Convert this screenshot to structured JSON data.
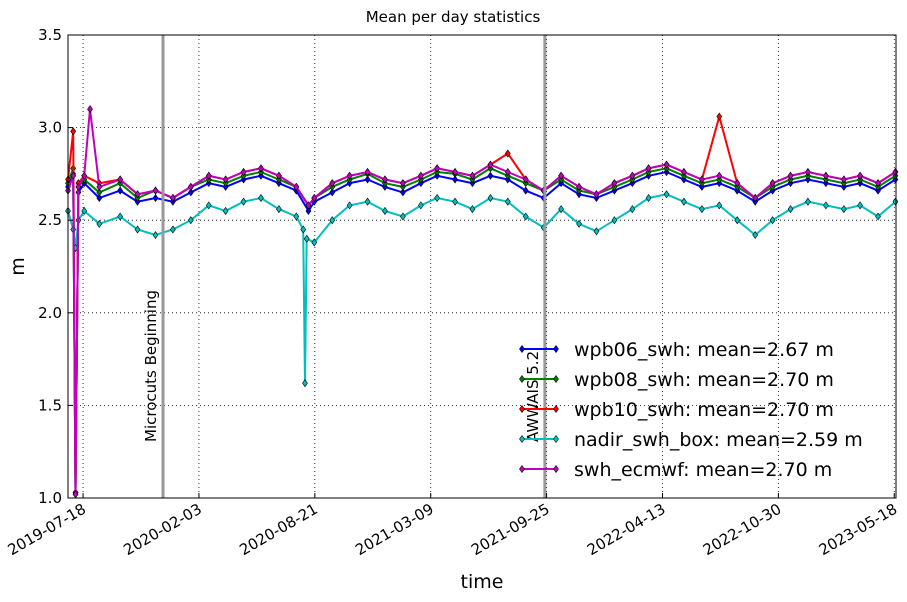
{
  "chart_data": {
    "type": "line",
    "title": "Mean per day statistics",
    "xlabel": "time",
    "ylabel": "m",
    "ylim": [
      1.0,
      3.5
    ],
    "xlim": [
      "2019-06-22",
      "2023-05-21"
    ],
    "yticks": [
      "1.0",
      "1.5",
      "2.0",
      "2.5",
      "3.0",
      "3.5"
    ],
    "xticks": [
      {
        "date": "2019-07-18",
        "label": "2019-07-18"
      },
      {
        "date": "2020-02-03",
        "label": "2020-02-03"
      },
      {
        "date": "2020-08-21",
        "label": "2020-08-21"
      },
      {
        "date": "2021-03-09",
        "label": "2021-03-09"
      },
      {
        "date": "2021-09-25",
        "label": "2021-09-25"
      },
      {
        "date": "2022-04-13",
        "label": "2022-04-13"
      },
      {
        "date": "2022-10-30",
        "label": "2022-10-30"
      },
      {
        "date": "2023-05-18",
        "label": "2023-05-18"
      }
    ],
    "grid": true,
    "legend_position": "lower-right",
    "annotations": [
      {
        "date": "2019-12-03",
        "label": "Microcuts Beginning"
      },
      {
        "date": "2021-09-22",
        "label": "AWWAIS 5.2"
      }
    ],
    "series": [
      {
        "name": "wpb06_swh: mean=2.67 m",
        "color": "#0000ff",
        "points": [
          [
            "2019-06-22",
            2.68
          ],
          [
            "2019-07-01",
            2.75
          ],
          [
            "2019-07-05",
            1.02
          ],
          [
            "2019-07-10",
            2.65
          ],
          [
            "2019-07-20",
            2.7
          ],
          [
            "2019-08-15",
            2.62
          ],
          [
            "2019-09-20",
            2.66
          ],
          [
            "2019-10-20",
            2.6
          ],
          [
            "2019-11-20",
            2.62
          ],
          [
            "2019-12-20",
            2.6
          ],
          [
            "2020-01-20",
            2.65
          ],
          [
            "2020-02-20",
            2.7
          ],
          [
            "2020-03-20",
            2.68
          ],
          [
            "2020-04-20",
            2.72
          ],
          [
            "2020-05-20",
            2.74
          ],
          [
            "2020-06-20",
            2.7
          ],
          [
            "2020-07-20",
            2.66
          ],
          [
            "2020-08-10",
            2.55
          ],
          [
            "2020-08-20",
            2.6
          ],
          [
            "2020-09-20",
            2.65
          ],
          [
            "2020-10-20",
            2.7
          ],
          [
            "2020-11-20",
            2.72
          ],
          [
            "2020-12-20",
            2.68
          ],
          [
            "2021-01-20",
            2.65
          ],
          [
            "2021-02-20",
            2.7
          ],
          [
            "2021-03-20",
            2.74
          ],
          [
            "2021-04-20",
            2.72
          ],
          [
            "2021-05-20",
            2.7
          ],
          [
            "2021-06-20",
            2.74
          ],
          [
            "2021-07-20",
            2.72
          ],
          [
            "2021-08-20",
            2.66
          ],
          [
            "2021-09-20",
            2.62
          ],
          [
            "2021-10-20",
            2.7
          ],
          [
            "2021-11-20",
            2.64
          ],
          [
            "2021-12-20",
            2.62
          ],
          [
            "2022-01-20",
            2.66
          ],
          [
            "2022-02-20",
            2.7
          ],
          [
            "2022-03-20",
            2.74
          ],
          [
            "2022-04-20",
            2.76
          ],
          [
            "2022-05-20",
            2.72
          ],
          [
            "2022-06-20",
            2.68
          ],
          [
            "2022-07-20",
            2.7
          ],
          [
            "2022-08-20",
            2.66
          ],
          [
            "2022-09-20",
            2.6
          ],
          [
            "2022-10-20",
            2.66
          ],
          [
            "2022-11-20",
            2.7
          ],
          [
            "2022-12-20",
            2.72
          ],
          [
            "2023-01-20",
            2.7
          ],
          [
            "2023-02-20",
            2.68
          ],
          [
            "2023-03-20",
            2.7
          ],
          [
            "2023-04-20",
            2.66
          ],
          [
            "2023-05-20",
            2.72
          ]
        ]
      },
      {
        "name": "wpb08_swh: mean=2.70 m",
        "color": "#008000",
        "points": [
          [
            "2019-06-22",
            2.7
          ],
          [
            "2019-07-01",
            2.78
          ],
          [
            "2019-07-05",
            1.03
          ],
          [
            "2019-07-10",
            2.68
          ],
          [
            "2019-07-20",
            2.72
          ],
          [
            "2019-08-15",
            2.65
          ],
          [
            "2019-09-20",
            2.7
          ],
          [
            "2019-10-20",
            2.62
          ],
          [
            "2019-11-20",
            2.66
          ],
          [
            "2019-12-20",
            2.62
          ],
          [
            "2020-01-20",
            2.68
          ],
          [
            "2020-02-20",
            2.72
          ],
          [
            "2020-03-20",
            2.7
          ],
          [
            "2020-04-20",
            2.74
          ],
          [
            "2020-05-20",
            2.76
          ],
          [
            "2020-06-20",
            2.72
          ],
          [
            "2020-07-20",
            2.68
          ],
          [
            "2020-08-10",
            2.58
          ],
          [
            "2020-08-20",
            2.62
          ],
          [
            "2020-09-20",
            2.68
          ],
          [
            "2020-10-20",
            2.72
          ],
          [
            "2020-11-20",
            2.75
          ],
          [
            "2020-12-20",
            2.7
          ],
          [
            "2021-01-20",
            2.68
          ],
          [
            "2021-02-20",
            2.72
          ],
          [
            "2021-03-20",
            2.76
          ],
          [
            "2021-04-20",
            2.75
          ],
          [
            "2021-05-20",
            2.72
          ],
          [
            "2021-06-20",
            2.78
          ],
          [
            "2021-07-20",
            2.74
          ],
          [
            "2021-08-20",
            2.7
          ],
          [
            "2021-09-20",
            2.66
          ],
          [
            "2021-10-20",
            2.72
          ],
          [
            "2021-11-20",
            2.66
          ],
          [
            "2021-12-20",
            2.64
          ],
          [
            "2022-01-20",
            2.68
          ],
          [
            "2022-02-20",
            2.72
          ],
          [
            "2022-03-20",
            2.76
          ],
          [
            "2022-04-20",
            2.78
          ],
          [
            "2022-05-20",
            2.74
          ],
          [
            "2022-06-20",
            2.7
          ],
          [
            "2022-07-20",
            2.72
          ],
          [
            "2022-08-20",
            2.68
          ],
          [
            "2022-09-20",
            2.62
          ],
          [
            "2022-10-20",
            2.68
          ],
          [
            "2022-11-20",
            2.72
          ],
          [
            "2022-12-20",
            2.74
          ],
          [
            "2023-01-20",
            2.72
          ],
          [
            "2023-02-20",
            2.7
          ],
          [
            "2023-03-20",
            2.72
          ],
          [
            "2023-04-20",
            2.68
          ],
          [
            "2023-05-20",
            2.74
          ]
        ]
      },
      {
        "name": "wpb10_swh: mean=2.70 m",
        "color": "#ff0000",
        "points": [
          [
            "2019-06-22",
            2.72
          ],
          [
            "2019-07-01",
            2.98
          ],
          [
            "2019-07-05",
            1.03
          ],
          [
            "2019-07-10",
            2.7
          ],
          [
            "2019-07-20",
            2.74
          ],
          [
            "2019-08-15",
            2.7
          ],
          [
            "2019-09-20",
            2.72
          ],
          [
            "2019-10-20",
            2.64
          ],
          [
            "2019-11-20",
            2.66
          ],
          [
            "2019-12-20",
            2.62
          ],
          [
            "2020-01-20",
            2.68
          ],
          [
            "2020-02-20",
            2.74
          ],
          [
            "2020-03-20",
            2.72
          ],
          [
            "2020-04-20",
            2.76
          ],
          [
            "2020-05-20",
            2.78
          ],
          [
            "2020-06-20",
            2.74
          ],
          [
            "2020-07-20",
            2.68
          ],
          [
            "2020-08-10",
            2.58
          ],
          [
            "2020-08-20",
            2.62
          ],
          [
            "2020-09-20",
            2.7
          ],
          [
            "2020-10-20",
            2.74
          ],
          [
            "2020-11-20",
            2.76
          ],
          [
            "2020-12-20",
            2.72
          ],
          [
            "2021-01-20",
            2.7
          ],
          [
            "2021-02-20",
            2.74
          ],
          [
            "2021-03-20",
            2.78
          ],
          [
            "2021-04-20",
            2.76
          ],
          [
            "2021-05-20",
            2.74
          ],
          [
            "2021-06-20",
            2.8
          ],
          [
            "2021-07-20",
            2.86
          ],
          [
            "2021-08-20",
            2.72
          ],
          [
            "2021-09-20",
            2.66
          ],
          [
            "2021-10-20",
            2.74
          ],
          [
            "2021-11-20",
            2.68
          ],
          [
            "2021-12-20",
            2.64
          ],
          [
            "2022-01-20",
            2.7
          ],
          [
            "2022-02-20",
            2.74
          ],
          [
            "2022-03-20",
            2.78
          ],
          [
            "2022-04-20",
            2.8
          ],
          [
            "2022-05-20",
            2.76
          ],
          [
            "2022-06-20",
            2.72
          ],
          [
            "2022-07-20",
            3.06
          ],
          [
            "2022-08-20",
            2.7
          ],
          [
            "2022-09-20",
            2.62
          ],
          [
            "2022-10-20",
            2.7
          ],
          [
            "2022-11-20",
            2.74
          ],
          [
            "2022-12-20",
            2.76
          ],
          [
            "2023-01-20",
            2.74
          ],
          [
            "2023-02-20",
            2.72
          ],
          [
            "2023-03-20",
            2.74
          ],
          [
            "2023-04-20",
            2.7
          ],
          [
            "2023-05-20",
            2.76
          ]
        ]
      },
      {
        "name": "nadir_swh_box: mean=2.59 m",
        "color": "#00bfbf",
        "points": [
          [
            "2019-06-22",
            2.55
          ],
          [
            "2019-07-01",
            2.45
          ],
          [
            "2019-07-05",
            2.35
          ],
          [
            "2019-07-10",
            2.5
          ],
          [
            "2019-07-20",
            2.55
          ],
          [
            "2019-08-15",
            2.48
          ],
          [
            "2019-09-20",
            2.52
          ],
          [
            "2019-10-20",
            2.45
          ],
          [
            "2019-11-20",
            2.42
          ],
          [
            "2019-12-20",
            2.45
          ],
          [
            "2020-01-20",
            2.5
          ],
          [
            "2020-02-20",
            2.58
          ],
          [
            "2020-03-20",
            2.55
          ],
          [
            "2020-04-20",
            2.6
          ],
          [
            "2020-05-20",
            2.62
          ],
          [
            "2020-06-20",
            2.56
          ],
          [
            "2020-07-20",
            2.52
          ],
          [
            "2020-08-01",
            2.45
          ],
          [
            "2020-08-04",
            1.62
          ],
          [
            "2020-08-07",
            2.4
          ],
          [
            "2020-08-20",
            2.38
          ],
          [
            "2020-09-20",
            2.5
          ],
          [
            "2020-10-20",
            2.58
          ],
          [
            "2020-11-20",
            2.6
          ],
          [
            "2020-12-20",
            2.55
          ],
          [
            "2021-01-20",
            2.52
          ],
          [
            "2021-02-20",
            2.58
          ],
          [
            "2021-03-20",
            2.62
          ],
          [
            "2021-04-20",
            2.6
          ],
          [
            "2021-05-20",
            2.56
          ],
          [
            "2021-06-20",
            2.62
          ],
          [
            "2021-07-20",
            2.6
          ],
          [
            "2021-08-20",
            2.52
          ],
          [
            "2021-09-20",
            2.46
          ],
          [
            "2021-10-20",
            2.56
          ],
          [
            "2021-11-20",
            2.48
          ],
          [
            "2021-12-20",
            2.44
          ],
          [
            "2022-01-20",
            2.5
          ],
          [
            "2022-02-20",
            2.56
          ],
          [
            "2022-03-20",
            2.62
          ],
          [
            "2022-04-20",
            2.64
          ],
          [
            "2022-05-20",
            2.6
          ],
          [
            "2022-06-20",
            2.56
          ],
          [
            "2022-07-20",
            2.58
          ],
          [
            "2022-08-20",
            2.5
          ],
          [
            "2022-09-20",
            2.42
          ],
          [
            "2022-10-20",
            2.5
          ],
          [
            "2022-11-20",
            2.56
          ],
          [
            "2022-12-20",
            2.6
          ],
          [
            "2023-01-20",
            2.58
          ],
          [
            "2023-02-20",
            2.56
          ],
          [
            "2023-03-20",
            2.58
          ],
          [
            "2023-04-20",
            2.52
          ],
          [
            "2023-05-20",
            2.6
          ]
        ]
      },
      {
        "name": "swh_ecmwf: mean=2.70 m",
        "color": "#bf00bf",
        "points": [
          [
            "2019-06-22",
            2.66
          ],
          [
            "2019-07-01",
            2.74
          ],
          [
            "2019-07-05",
            1.02
          ],
          [
            "2019-07-10",
            2.68
          ],
          [
            "2019-07-20",
            2.74
          ],
          [
            "2019-07-30",
            3.1
          ],
          [
            "2019-08-15",
            2.68
          ],
          [
            "2019-09-20",
            2.72
          ],
          [
            "2019-10-20",
            2.64
          ],
          [
            "2019-11-20",
            2.66
          ],
          [
            "2019-12-20",
            2.62
          ],
          [
            "2020-01-20",
            2.68
          ],
          [
            "2020-02-20",
            2.74
          ],
          [
            "2020-03-20",
            2.72
          ],
          [
            "2020-04-20",
            2.76
          ],
          [
            "2020-05-20",
            2.78
          ],
          [
            "2020-06-20",
            2.74
          ],
          [
            "2020-07-20",
            2.68
          ],
          [
            "2020-08-10",
            2.58
          ],
          [
            "2020-08-20",
            2.62
          ],
          [
            "2020-09-20",
            2.7
          ],
          [
            "2020-10-20",
            2.74
          ],
          [
            "2020-11-20",
            2.76
          ],
          [
            "2020-12-20",
            2.72
          ],
          [
            "2021-01-20",
            2.7
          ],
          [
            "2021-02-20",
            2.74
          ],
          [
            "2021-03-20",
            2.78
          ],
          [
            "2021-04-20",
            2.76
          ],
          [
            "2021-05-20",
            2.74
          ],
          [
            "2021-06-20",
            2.8
          ],
          [
            "2021-07-20",
            2.76
          ],
          [
            "2021-08-20",
            2.72
          ],
          [
            "2021-09-20",
            2.66
          ],
          [
            "2021-10-20",
            2.74
          ],
          [
            "2021-11-20",
            2.68
          ],
          [
            "2021-12-20",
            2.64
          ],
          [
            "2022-01-20",
            2.7
          ],
          [
            "2022-02-20",
            2.74
          ],
          [
            "2022-03-20",
            2.78
          ],
          [
            "2022-04-20",
            2.8
          ],
          [
            "2022-05-20",
            2.76
          ],
          [
            "2022-06-20",
            2.72
          ],
          [
            "2022-07-20",
            2.74
          ],
          [
            "2022-08-20",
            2.7
          ],
          [
            "2022-09-20",
            2.62
          ],
          [
            "2022-10-20",
            2.7
          ],
          [
            "2022-11-20",
            2.74
          ],
          [
            "2022-12-20",
            2.76
          ],
          [
            "2023-01-20",
            2.74
          ],
          [
            "2023-02-20",
            2.72
          ],
          [
            "2023-03-20",
            2.74
          ],
          [
            "2023-04-20",
            2.7
          ],
          [
            "2023-05-20",
            2.76
          ]
        ]
      }
    ]
  }
}
